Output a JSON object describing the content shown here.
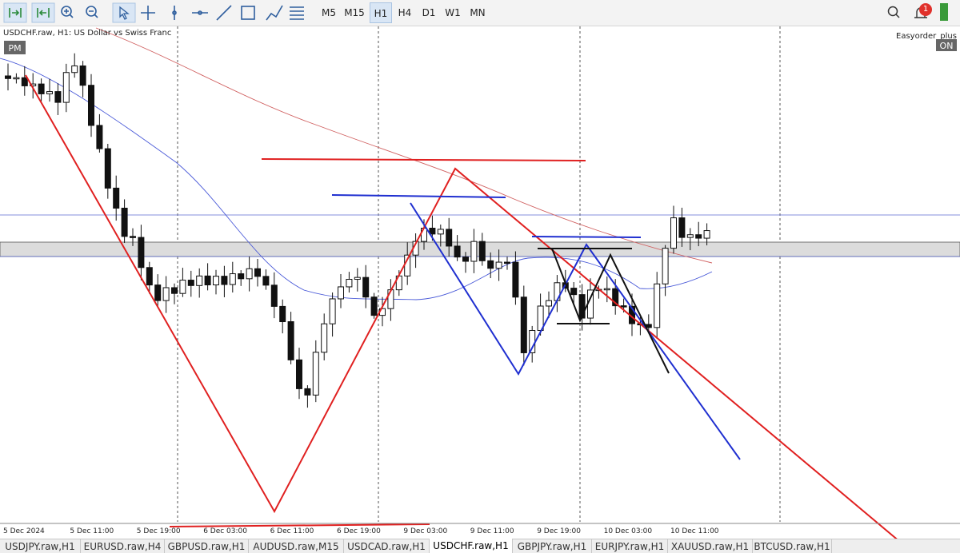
{
  "toolbar": {
    "timeframes": [
      "M5",
      "M15",
      "H1",
      "H4",
      "D1",
      "W1",
      "MN"
    ],
    "active_timeframe": 2,
    "notification_count": "1"
  },
  "chart": {
    "header": "USDCHF.raw, H1:  US Dollar vs Swiss Franc",
    "session_badge": "PM",
    "expert_name": "Easyorder_plus",
    "expert_status": "ON",
    "time_labels": [
      "5 Dec 2024",
      "5 Dec 11:00",
      "5 Dec 19:00",
      "6 Dec 03:00",
      "6 Dec 11:00",
      "6 Dec 19:00",
      "9 Dec 03:00",
      "9 Dec 11:00",
      "9 Dec 19:00",
      "10 Dec 03:00",
      "10 Dec 11:00"
    ]
  },
  "tabs": {
    "items": [
      "USDJPY.raw,H1",
      "EURUSD.raw,H4",
      "GBPUSD.raw,H1",
      "AUDUSD.raw,M15",
      "USDCAD.raw,H1",
      "USDCHF.raw,H1",
      "GBPJPY.raw,H1",
      "EURJPY.raw,H1",
      "XAUUSD.raw,H1",
      "BTCUSD.raw,H1"
    ],
    "active": 5
  }
}
